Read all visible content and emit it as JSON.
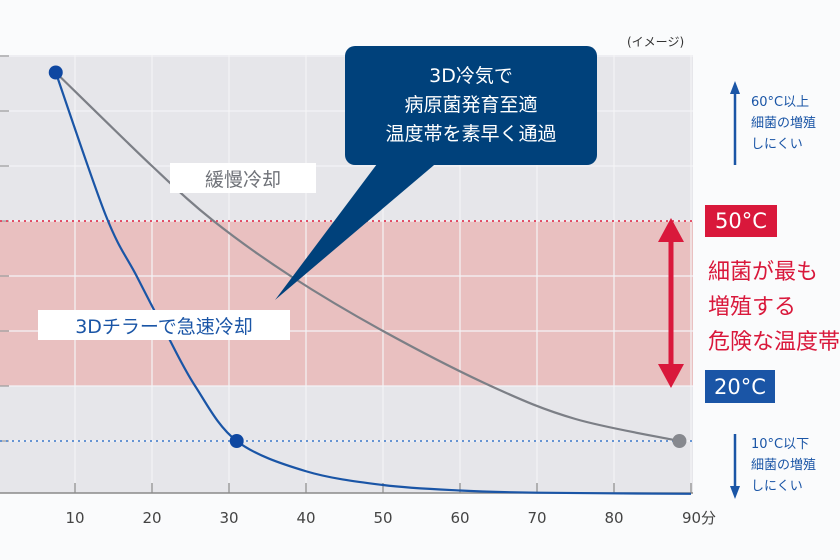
{
  "chart_data": {
    "type": "line",
    "title": "",
    "note": "(イメージ)",
    "xlabel": "分",
    "ylabel": "°C",
    "xlim": [
      0,
      90
    ],
    "ylim": [
      0,
      80
    ],
    "x_ticks": [
      "10",
      "20",
      "30",
      "40",
      "50",
      "60",
      "70",
      "80",
      "90分"
    ],
    "x_tick_values": [
      10,
      20,
      30,
      40,
      50,
      60,
      70,
      80,
      90
    ],
    "y_grid_values": [
      10,
      20,
      30,
      40,
      50,
      60,
      70,
      80
    ],
    "grid": true,
    "series": [
      {
        "name": "3Dチラーで急速冷却",
        "color": "#1a55a6",
        "x": [
          7.5,
          14,
          18,
          21.7,
          25.6,
          31,
          40,
          50,
          60,
          70,
          90
        ],
        "y": [
          77,
          51,
          40,
          30,
          20,
          10,
          4.5,
          2,
          1,
          0.6,
          0.4
        ],
        "markers": [
          [
            7.5,
            77
          ],
          [
            31,
            10
          ]
        ]
      },
      {
        "name": "緩慢冷却",
        "color": "#7c7f86",
        "x": [
          7.5,
          20,
          28,
          38,
          50,
          64,
          75,
          88.5
        ],
        "y": [
          77,
          60,
          50,
          40,
          30,
          20,
          14,
          10
        ],
        "markers": [
          [
            88.5,
            10
          ]
        ]
      }
    ],
    "danger_band": {
      "from": 20,
      "to": 50,
      "color": "#e9c0c0"
    },
    "reference_lines": [
      {
        "value": 50,
        "color": "#e0203f"
      },
      {
        "value": 10,
        "color": "#3a78c9"
      }
    ]
  },
  "callout": [
    "3D冷気で",
    "病原菌発育至適",
    "温度帯を素早く通過"
  ],
  "labels": {
    "slow": "緩慢冷却",
    "fast": "3Dチラーで急速冷却"
  },
  "tags": {
    "high": "50°C",
    "low": "20°C",
    "high_color": "#d9183b",
    "low_color": "#1a55a6"
  },
  "danger_text": [
    "細菌が最も",
    "増殖する",
    "危険な温度帯"
  ],
  "note_high": [
    "60°C以上",
    "細菌の増殖",
    "しにくい"
  ],
  "note_low": [
    "10°C以下",
    "細菌の増殖",
    "しにくい"
  ]
}
